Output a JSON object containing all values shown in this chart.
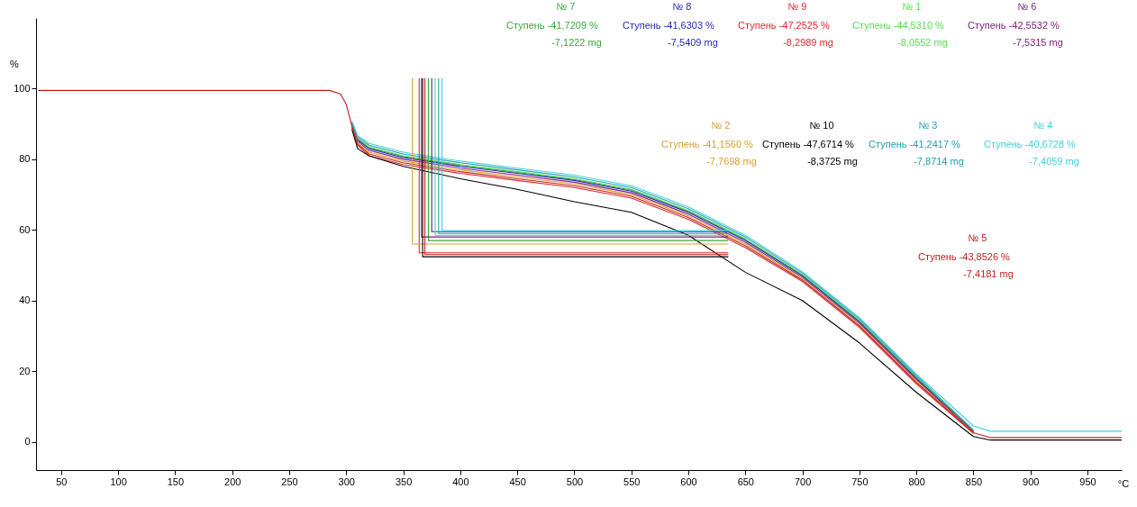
{
  "chart_data": {
    "type": "line",
    "xlabel": "°C",
    "ylabel": "%",
    "xlim": [
      28,
      980
    ],
    "ylim": [
      -8,
      120
    ],
    "xticks": [
      50,
      100,
      150,
      200,
      250,
      300,
      350,
      400,
      450,
      500,
      550,
      600,
      650,
      700,
      750,
      800,
      850,
      900,
      950
    ],
    "yticks": [
      0,
      20,
      40,
      60,
      80,
      100
    ],
    "grid": false,
    "marker": "none",
    "line_style": "solid",
    "series": [
      {
        "name": "№ 7",
        "color": "#3aa83a",
        "x": [
          305,
          310,
          320,
          350,
          400,
          450,
          500,
          550,
          600,
          650,
          700,
          750,
          800,
          850
        ],
        "values": [
          90.2,
          85.7,
          83.3,
          80.8,
          78.3,
          76.3,
          74.3,
          71.3,
          65.3,
          57.3,
          47.2,
          34.2,
          18.2,
          3.1
        ]
      },
      {
        "name": "№ 8",
        "color": "#2828b8",
        "x": [
          305,
          310,
          320,
          350,
          400,
          450,
          500,
          550,
          600,
          650,
          700,
          750,
          800,
          850
        ],
        "values": [
          90,
          85.5,
          83,
          80.5,
          78,
          76,
          74,
          71,
          65,
          57,
          47,
          34,
          18,
          3
        ]
      },
      {
        "name": "№ 9",
        "color": "#e02828",
        "x": [
          305,
          310,
          320,
          350,
          400,
          450,
          500,
          550,
          600,
          650,
          700,
          750,
          800,
          850
        ],
        "values": [
          89,
          83.9,
          81,
          78.5,
          76,
          74,
          72,
          69,
          63,
          55,
          45.4,
          32.4,
          16.4,
          2.4
        ]
      },
      {
        "name": "№ 1",
        "color": "#55dd55",
        "x": [
          305,
          310,
          320,
          350,
          400,
          450,
          500,
          550,
          600,
          650,
          700,
          750,
          800,
          850
        ],
        "values": [
          90.3,
          85.9,
          83.5,
          81,
          78.5,
          76.5,
          74.5,
          71.5,
          65.5,
          57.5,
          47.4,
          34.4,
          18.4,
          3.2
        ]
      },
      {
        "name": "№ 6",
        "color": "#802080",
        "x": [
          305,
          310,
          320,
          350,
          400,
          450,
          500,
          550,
          600,
          650,
          700,
          750,
          800,
          850
        ],
        "values": [
          89.8,
          85.1,
          82.5,
          80,
          77.5,
          75.5,
          73.5,
          70.5,
          64.5,
          56.5,
          46.6,
          33.6,
          17.6,
          2.9
        ]
      },
      {
        "name": "№ 2",
        "color": "#d8a030",
        "x": [
          305,
          310,
          320,
          350,
          400,
          450,
          500,
          550,
          600,
          650,
          700,
          750,
          800,
          850
        ],
        "values": [
          89.5,
          84.7,
          82,
          79.5,
          77,
          75,
          73,
          70,
          64,
          56,
          46.2,
          33.2,
          17.2,
          2.7
        ]
      },
      {
        "name": "№ 10",
        "color": "#000000",
        "x": [
          305,
          310,
          320,
          350,
          400,
          450,
          500,
          550,
          600,
          650,
          700,
          750,
          800,
          850,
          865,
          980
        ],
        "values": [
          88.5,
          83,
          81,
          78,
          74.5,
          71.5,
          68,
          65,
          58.5,
          48,
          40,
          28,
          14,
          1.5,
          0.5,
          0.5
        ]
      },
      {
        "name": "№ 3",
        "color": "#20a0b0",
        "x": [
          305,
          310,
          320,
          350,
          400,
          450,
          500,
          550,
          600,
          650,
          700,
          750,
          800,
          850
        ],
        "values": [
          90.5,
          86.3,
          84,
          81.5,
          79,
          77,
          75,
          72,
          66,
          58,
          47.8,
          34.8,
          18.8,
          3.3
        ]
      },
      {
        "name": "№ 4",
        "color": "#40d0e0",
        "x": [
          305,
          310,
          320,
          350,
          400,
          450,
          500,
          550,
          600,
          650,
          700,
          750,
          800,
          850,
          865,
          980
        ],
        "values": [
          90.8,
          86.7,
          84.5,
          82,
          79.5,
          77.5,
          75.5,
          72.5,
          66.5,
          58.5,
          48.2,
          35.2,
          19.2,
          4.5,
          3,
          3
        ]
      },
      {
        "name": "№ 5",
        "color": "#c02020",
        "x": [
          30,
          285,
          295,
          300,
          305,
          310,
          320,
          350,
          400,
          450,
          500,
          550,
          600,
          650,
          700,
          750,
          800,
          850,
          865,
          980
        ],
        "values": [
          99.5,
          99.5,
          98.5,
          95.6,
          89.3,
          84.3,
          81.5,
          79,
          76.5,
          74.5,
          72.5,
          69.5,
          63.5,
          55.5,
          45.8,
          32.8,
          16.8,
          2.6,
          1.2,
          1.2
        ]
      },
      {
        "color": "#3aa83a",
        "x": [
          372,
          372,
          635
        ],
        "values": [
          103,
          57,
          57
        ]
      },
      {
        "color": "#2828b8",
        "x": [
          375,
          375,
          635
        ],
        "values": [
          103,
          59.5,
          59.5
        ]
      },
      {
        "color": "#e02828",
        "x": [
          364,
          364,
          635
        ],
        "values": [
          103,
          53.5,
          53.5
        ]
      },
      {
        "color": "#55dd55",
        "x": [
          378,
          378,
          635
        ],
        "values": [
          103,
          58.5,
          58.5
        ]
      },
      {
        "color": "#802080",
        "x": [
          366,
          366,
          635
        ],
        "values": [
          103,
          58,
          58
        ]
      },
      {
        "color": "#d8a030",
        "x": [
          358,
          358,
          635
        ],
        "values": [
          103,
          56,
          56
        ]
      },
      {
        "color": "#000000",
        "x": [
          367,
          367,
          635
        ],
        "values": [
          103,
          52.4,
          52.4
        ]
      },
      {
        "color": "#20a0b0",
        "x": [
          381,
          381,
          635
        ],
        "values": [
          103,
          59,
          59
        ]
      },
      {
        "color": "#40d0e0",
        "x": [
          384,
          384,
          635
        ],
        "values": [
          103,
          59.8,
          59.8
        ]
      },
      {
        "color": "#c02020",
        "x": [
          369,
          369,
          635
        ],
        "values": [
          103,
          53,
          53
        ]
      }
    ],
    "annotations": [
      "Ступень  -41,7209 %",
      "-7,1222 mg",
      "Ступень  -41,6303 %",
      "-7,5409 mg",
      "Ступень  -47,2525 %",
      "-8,2989 mg",
      "Ступень  -44,5310 %",
      "-8,0552 mg",
      "Ступень  -42,5532 %",
      "-7,5315 mg",
      "Ступень  -41,1560 %",
      "-7,7698 mg",
      "Ступень  -47,6714 %",
      "-8,3725 mg",
      "Ступень  -41,2417 %",
      "-7,8714 mg",
      "Ступень  -40,6728 %",
      "-7,4059 mg",
      "Ступень  -43,8526 %",
      "-7,4181 mg"
    ]
  }
}
